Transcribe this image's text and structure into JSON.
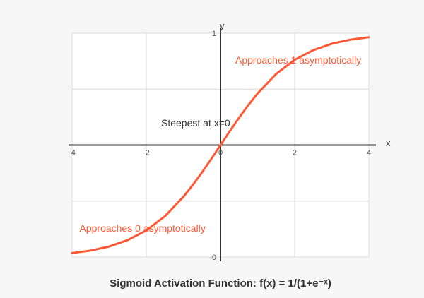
{
  "chart_data": {
    "type": "line",
    "title": "Sigmoid Activation Function: f(x) = 1/(1+e⁻ˣ)",
    "xlabel": "x",
    "ylabel": "y",
    "xlim": [
      -4,
      4
    ],
    "ylim": [
      0,
      1
    ],
    "x_ticks": [
      "-4",
      "-2",
      "0",
      "2",
      "4"
    ],
    "y_ticks": [
      "0",
      "1"
    ],
    "grid": true,
    "series": [
      {
        "x": [
          -4,
          -3.5,
          -3,
          -2.5,
          -2,
          -1.5,
          -1,
          -0.75,
          -0.5,
          -0.25,
          0,
          0.25,
          0.5,
          0.75,
          1,
          1.5,
          2,
          2.5,
          3,
          3.5,
          4
        ],
        "y": [
          0.018,
          0.029,
          0.047,
          0.076,
          0.119,
          0.182,
          0.269,
          0.321,
          0.378,
          0.438,
          0.5,
          0.562,
          0.622,
          0.679,
          0.731,
          0.818,
          0.881,
          0.924,
          0.953,
          0.971,
          0.982
        ],
        "color": "#ff5733"
      }
    ],
    "annotations": [
      {
        "text": "Approaches 1 asymptotically",
        "x": 0.4,
        "y": 0.88,
        "color": "#ff5733"
      },
      {
        "text": "Steepest at x=0",
        "x": -1.6,
        "y": 0.6,
        "color": "#333333"
      },
      {
        "text": "Approaches 0 asymptotically",
        "x": -3.8,
        "y": 0.13,
        "color": "#ff5733"
      }
    ],
    "colors": {
      "line": "#ff5733",
      "axis": "#333333",
      "grid": "#dcdcdc",
      "background": "#ffffff"
    }
  }
}
